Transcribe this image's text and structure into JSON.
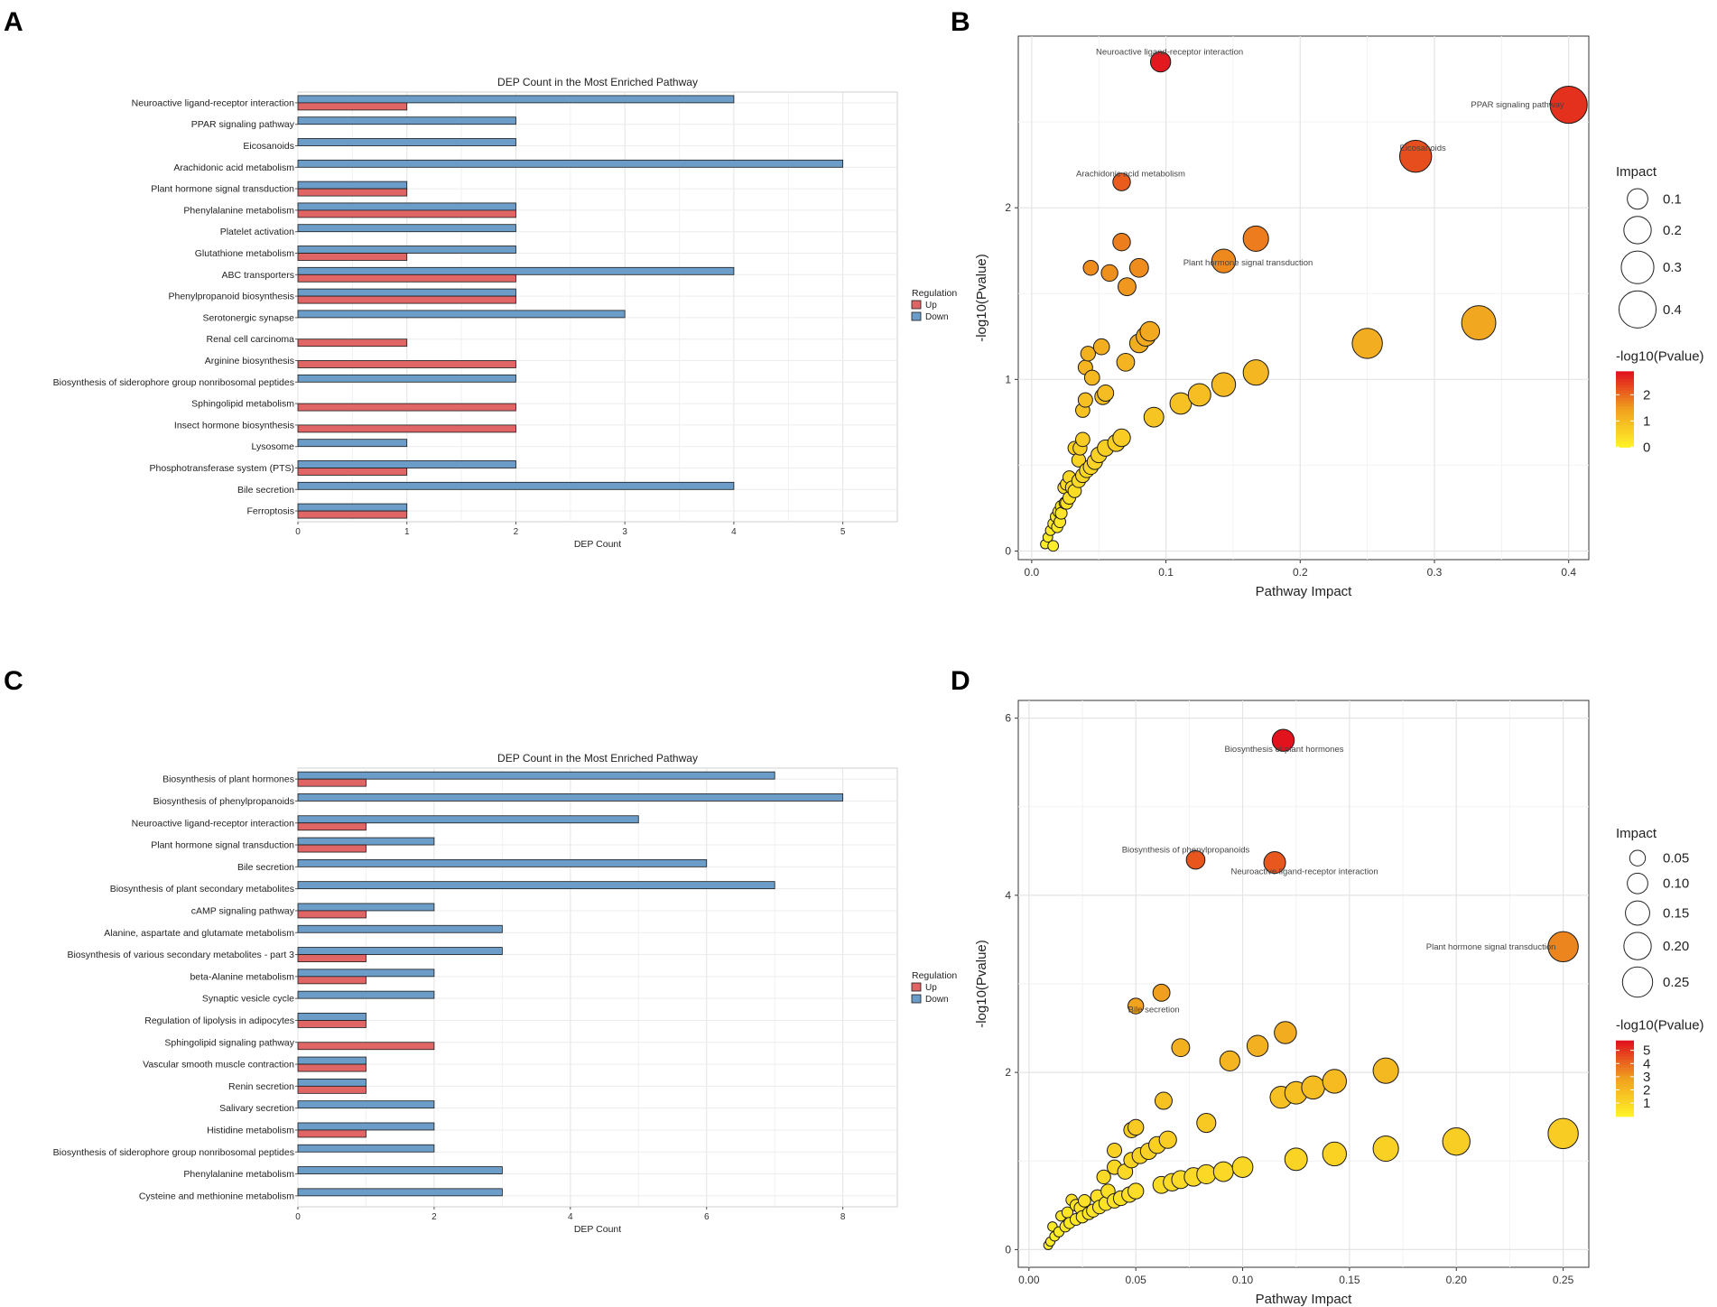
{
  "chart_data": [
    {
      "panel": "A",
      "type": "bar",
      "orientation": "horizontal",
      "title": "DEP Count in the Most Enriched Pathway",
      "xlabel": "DEP Count",
      "ylabel": "",
      "xlim": [
        0,
        5.5
      ],
      "xticks": [
        0,
        1,
        2,
        3,
        4,
        5
      ],
      "legend_title": "Regulation",
      "colors": {
        "Up": "#e06666",
        "Down": "#6c9dc8"
      },
      "categories": [
        "Neuroactive ligand-receptor interaction",
        "PPAR signaling pathway",
        "Eicosanoids",
        "Arachidonic acid metabolism",
        "Plant hormone signal transduction",
        "Phenylalanine metabolism",
        "Platelet activation",
        "Glutathione metabolism",
        "ABC transporters",
        "Phenylpropanoid biosynthesis",
        "Serotonergic synapse",
        "Renal cell carcinoma",
        "Arginine biosynthesis",
        "Biosynthesis of siderophore group nonribosomal peptides",
        "Sphingolipid metabolism",
        "Insect hormone biosynthesis",
        "Lysosome",
        "Phosphotransferase system (PTS)",
        "Bile secretion",
        "Ferroptosis"
      ],
      "series": [
        {
          "name": "Up",
          "values": [
            1,
            0,
            0,
            0,
            1,
            2,
            0,
            1,
            2,
            2,
            0,
            1,
            2,
            0,
            2,
            2,
            0,
            1,
            0,
            1
          ]
        },
        {
          "name": "Down",
          "values": [
            4,
            2,
            2,
            5,
            1,
            2,
            2,
            2,
            4,
            2,
            3,
            0,
            0,
            2,
            0,
            0,
            1,
            2,
            4,
            1
          ]
        }
      ]
    },
    {
      "panel": "B",
      "type": "scatter",
      "xlabel": "Pathway Impact",
      "ylabel": "-log10(Pvalue)",
      "xlim": [
        -0.01,
        0.415
      ],
      "ylim": [
        -0.05,
        3.0
      ],
      "xticks": [
        "0.0",
        "0.1",
        "0.2",
        "0.3",
        "0.4"
      ],
      "yticks": [
        "0",
        "1",
        "2"
      ],
      "size_legend": {
        "title": "Impact",
        "values": [
          "0.1",
          "0.2",
          "0.3",
          "0.4"
        ]
      },
      "color_legend": {
        "title": "-log10(Pvalue)",
        "ticks": [
          "2",
          "1",
          "0"
        ],
        "max": 2.9
      },
      "labeled_points": [
        {
          "label": "Neuroactive ligand-receptor interaction",
          "x": 0.096,
          "y": 2.85
        },
        {
          "label": "PPAR signaling pathway",
          "x": 0.4,
          "y": 2.6
        },
        {
          "label": "Eicosanoids",
          "x": 0.286,
          "y": 2.3
        },
        {
          "label": "Arachidonic acid metabolism",
          "x": 0.067,
          "y": 2.15
        },
        {
          "label": "Plant hormone signal transduction",
          "x": 0.143,
          "y": 1.69
        }
      ],
      "points": [
        [
          0.096,
          2.85
        ],
        [
          0.4,
          2.6
        ],
        [
          0.286,
          2.3
        ],
        [
          0.067,
          2.15
        ],
        [
          0.167,
          1.82
        ],
        [
          0.143,
          1.69
        ],
        [
          0.067,
          1.8
        ],
        [
          0.044,
          1.65
        ],
        [
          0.058,
          1.62
        ],
        [
          0.08,
          1.65
        ],
        [
          0.071,
          1.54
        ],
        [
          0.333,
          1.33
        ],
        [
          0.25,
          1.21
        ],
        [
          0.167,
          1.04
        ],
        [
          0.143,
          0.97
        ],
        [
          0.125,
          0.91
        ],
        [
          0.111,
          0.86
        ],
        [
          0.091,
          0.78
        ],
        [
          0.088,
          1.28
        ],
        [
          0.085,
          1.25
        ],
        [
          0.08,
          1.21
        ],
        [
          0.07,
          1.1
        ],
        [
          0.052,
          1.19
        ],
        [
          0.042,
          1.15
        ],
        [
          0.04,
          1.07
        ],
        [
          0.045,
          1.01
        ],
        [
          0.055,
          0.92
        ],
        [
          0.053,
          0.9
        ],
        [
          0.04,
          0.88
        ],
        [
          0.038,
          0.82
        ],
        [
          0.067,
          0.66
        ],
        [
          0.063,
          0.63
        ],
        [
          0.055,
          0.6
        ],
        [
          0.05,
          0.56
        ],
        [
          0.047,
          0.52
        ],
        [
          0.038,
          0.65
        ],
        [
          0.036,
          0.6
        ],
        [
          0.032,
          0.6
        ],
        [
          0.035,
          0.53
        ],
        [
          0.044,
          0.49
        ],
        [
          0.041,
          0.47
        ],
        [
          0.038,
          0.44
        ],
        [
          0.035,
          0.41
        ],
        [
          0.028,
          0.43
        ],
        [
          0.026,
          0.39
        ],
        [
          0.024,
          0.37
        ],
        [
          0.03,
          0.37
        ],
        [
          0.032,
          0.35
        ],
        [
          0.028,
          0.31
        ],
        [
          0.025,
          0.28
        ],
        [
          0.022,
          0.26
        ],
        [
          0.02,
          0.23
        ],
        [
          0.018,
          0.2
        ],
        [
          0.016,
          0.16
        ],
        [
          0.014,
          0.12
        ],
        [
          0.012,
          0.08
        ],
        [
          0.01,
          0.04
        ],
        [
          0.016,
          0.03
        ],
        [
          0.022,
          0.22
        ],
        [
          0.026,
          0.28
        ],
        [
          0.021,
          0.17
        ],
        [
          0.019,
          0.14
        ]
      ]
    },
    {
      "panel": "C",
      "type": "bar",
      "orientation": "horizontal",
      "title": "DEP Count in the Most Enriched Pathway",
      "xlabel": "DEP Count",
      "ylabel": "",
      "xlim": [
        0,
        8.8
      ],
      "xticks": [
        0,
        2,
        4,
        6,
        8
      ],
      "legend_title": "Regulation",
      "colors": {
        "Up": "#e06666",
        "Down": "#6c9dc8"
      },
      "categories": [
        "Biosynthesis of plant hormones",
        "Biosynthesis of phenylpropanoids",
        "Neuroactive ligand-receptor interaction",
        "Plant hormone signal transduction",
        "Bile secretion",
        "Biosynthesis of plant secondary metabolites",
        "cAMP signaling pathway",
        "Alanine, aspartate and glutamate metabolism",
        "Biosynthesis of various secondary metabolites - part 3",
        "beta-Alanine metabolism",
        "Synaptic vesicle cycle",
        "Regulation of lipolysis in adipocytes",
        "Sphingolipid signaling pathway",
        "Vascular smooth muscle contraction",
        "Renin secretion",
        "Salivary secretion",
        "Histidine metabolism",
        "Biosynthesis of siderophore group nonribosomal peptides",
        "Phenylalanine metabolism",
        "Cysteine and methionine metabolism"
      ],
      "series": [
        {
          "name": "Up",
          "values": [
            1,
            0,
            1,
            1,
            0,
            0,
            1,
            0,
            1,
            1,
            0,
            1,
            2,
            1,
            1,
            0,
            1,
            0,
            0,
            0
          ]
        },
        {
          "name": "Down",
          "values": [
            7,
            8,
            5,
            2,
            6,
            7,
            2,
            3,
            3,
            2,
            2,
            1,
            0,
            1,
            1,
            2,
            2,
            2,
            3,
            3
          ]
        }
      ]
    },
    {
      "panel": "D",
      "type": "scatter",
      "xlabel": "Pathway Impact",
      "ylabel": "-log10(Pvalue)",
      "xlim": [
        -0.005,
        0.262
      ],
      "ylim": [
        -0.2,
        6.2
      ],
      "xticks": [
        "0.00",
        "0.05",
        "0.10",
        "0.15",
        "0.20",
        "0.25"
      ],
      "yticks": [
        "0",
        "2",
        "4",
        "6"
      ],
      "size_legend": {
        "title": "Impact",
        "values": [
          "0.05",
          "0.10",
          "0.15",
          "0.20",
          "0.25"
        ]
      },
      "color_legend": {
        "title": "-log10(Pvalue)",
        "ticks": [
          "5",
          "4",
          "3",
          "2",
          "1"
        ],
        "max": 5.75
      },
      "labeled_points": [
        {
          "label": "Biosynthesis of plant hormones",
          "x": 0.119,
          "y": 5.75
        },
        {
          "label": "Biosynthesis of phenylpropanoids",
          "x": 0.078,
          "y": 4.4
        },
        {
          "label": "Neuroactive ligand-receptor interaction",
          "x": 0.115,
          "y": 4.37
        },
        {
          "label": "Plant hormone signal transduction",
          "x": 0.25,
          "y": 3.42
        },
        {
          "label": "Bile secretion",
          "x": 0.05,
          "y": 2.75
        }
      ],
      "points": [
        [
          0.119,
          5.75
        ],
        [
          0.078,
          4.4
        ],
        [
          0.115,
          4.37
        ],
        [
          0.25,
          3.42
        ],
        [
          0.062,
          2.9
        ],
        [
          0.05,
          2.75
        ],
        [
          0.12,
          2.45
        ],
        [
          0.107,
          2.3
        ],
        [
          0.071,
          2.28
        ],
        [
          0.094,
          2.13
        ],
        [
          0.167,
          2.02
        ],
        [
          0.143,
          1.9
        ],
        [
          0.133,
          1.83
        ],
        [
          0.125,
          1.77
        ],
        [
          0.118,
          1.72
        ],
        [
          0.063,
          1.68
        ],
        [
          0.083,
          1.43
        ],
        [
          0.25,
          1.31
        ],
        [
          0.2,
          1.22
        ],
        [
          0.167,
          1.14
        ],
        [
          0.143,
          1.08
        ],
        [
          0.125,
          1.02
        ],
        [
          0.1,
          0.93
        ],
        [
          0.091,
          0.88
        ],
        [
          0.083,
          0.85
        ],
        [
          0.077,
          0.82
        ],
        [
          0.071,
          0.79
        ],
        [
          0.067,
          0.76
        ],
        [
          0.062,
          0.73
        ],
        [
          0.065,
          1.24
        ],
        [
          0.06,
          1.18
        ],
        [
          0.056,
          1.11
        ],
        [
          0.052,
          1.06
        ],
        [
          0.048,
          1.01
        ],
        [
          0.04,
          1.12
        ],
        [
          0.04,
          0.93
        ],
        [
          0.045,
          0.88
        ],
        [
          0.05,
          0.66
        ],
        [
          0.047,
          0.62
        ],
        [
          0.043,
          0.58
        ],
        [
          0.04,
          0.55
        ],
        [
          0.036,
          0.52
        ],
        [
          0.033,
          0.48
        ],
        [
          0.03,
          0.44
        ],
        [
          0.028,
          0.41
        ],
        [
          0.025,
          0.37
        ],
        [
          0.022,
          0.34
        ],
        [
          0.019,
          0.3
        ],
        [
          0.017,
          0.26
        ],
        [
          0.014,
          0.2
        ],
        [
          0.012,
          0.15
        ],
        [
          0.01,
          0.09
        ],
        [
          0.009,
          0.05
        ],
        [
          0.02,
          0.56
        ],
        [
          0.022,
          0.5
        ],
        [
          0.026,
          0.55
        ],
        [
          0.032,
          0.6
        ],
        [
          0.037,
          0.66
        ],
        [
          0.024,
          0.47
        ],
        [
          0.018,
          0.42
        ],
        [
          0.015,
          0.38
        ],
        [
          0.011,
          0.26
        ],
        [
          0.05,
          1.38
        ],
        [
          0.048,
          1.35
        ],
        [
          0.035,
          0.82
        ]
      ]
    }
  ],
  "panels": {
    "A": "A",
    "B": "B",
    "C": "C",
    "D": "D"
  },
  "legend_labels": {
    "up": "Up",
    "down": "Down"
  }
}
